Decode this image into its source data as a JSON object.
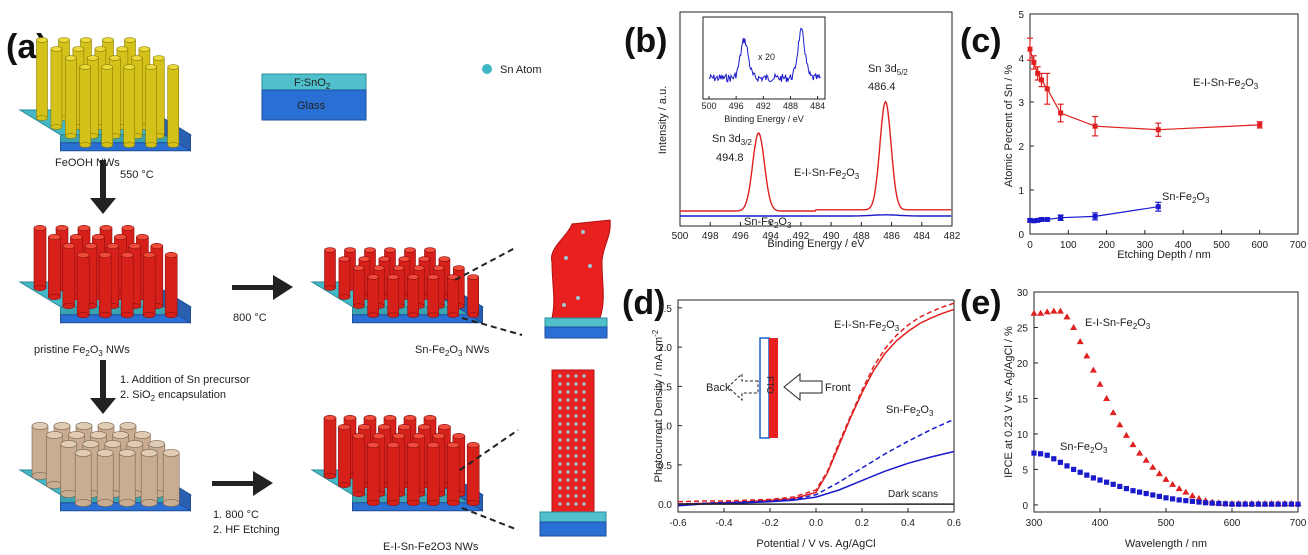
{
  "colors": {
    "red": "#e02020",
    "blue": "#1a1acc",
    "substrate": "#3fb6c4",
    "glass": "#2a6fd4",
    "feooh": "#d4c21a",
    "sio2": "#c9ad92",
    "black": "#222222"
  },
  "panel_a": {
    "label": "(a)",
    "feooh_label": "FeOOH NWs",
    "step1_temp": "550 °C",
    "pristine_label_pre": "pristine Fe",
    "pristine_label_sub1": "2",
    "pristine_label_mid": "O",
    "pristine_label_sub2": "3",
    "pristine_label_post": " NWs",
    "step_800": "800 °C",
    "sn_fe2o3_pre": "Sn-Fe",
    "sn_fe2o3_sub1": "2",
    "sn_fe2o3_mid": "O",
    "sn_fe2o3_sub2": "3",
    "sn_fe2o3_post": " NWs",
    "step2_line1": "1. Addition of Sn precursor",
    "step2_line2_pre": "2. SiO",
    "step2_line2_sub": "2",
    "step2_line2_post": " encapsulation",
    "step3_line1": "1. 800 °C",
    "step3_line2": "2. HF Etching",
    "ei_label": "E-I-Sn-Fe2O3 NWs",
    "legend_fto_pre": "F:SnO",
    "legend_fto_sub": "2",
    "legend_glass": "Glass",
    "legend_sn_atom": "Sn Atom"
  },
  "panel_b": {
    "label": "(b)",
    "xlabel": "Binding Energy / eV",
    "ylabel": "Intensity / a.u.",
    "xticks": [
      "500",
      "498",
      "496",
      "494",
      "492",
      "490",
      "488",
      "486",
      "484",
      "482"
    ],
    "peak1_name": "Sn 3d",
    "peak1_sub": "3/2",
    "peak1_value": "494.8",
    "peak2_name": "Sn 3d",
    "peak2_sub": "5/2",
    "peak2_value": "486.4",
    "series_red": "E-I-Sn-Fe2O3",
    "series_blue": "Sn-Fe2O3",
    "inset_xlabel": "Binding Energy / eV",
    "inset_xticks": [
      "500",
      "496",
      "492",
      "488",
      "484"
    ],
    "inset_note": "x 20"
  },
  "panel_c": {
    "label": "(c)",
    "xlabel": "Etching Depth / nm",
    "ylabel": "Atomic Percent of Sn / %",
    "xticks": [
      "0",
      "100",
      "200",
      "300",
      "400",
      "500",
      "600",
      "700"
    ],
    "yticks": [
      "0",
      "1",
      "2",
      "3",
      "4",
      "5"
    ],
    "series_red": "E-I-Sn-Fe2O3",
    "series_blue": "Sn-Fe2O3"
  },
  "panel_d": {
    "label": "(d)",
    "xlabel": "Potential / V vs. Ag/AgCl",
    "ylabel": "Photocurrent Density / mA cm-2",
    "xticks": [
      "-0.6",
      "-0.4",
      "-0.2",
      "0.0",
      "0.2",
      "0.4",
      "0.6"
    ],
    "yticks": [
      "0.0",
      "0.5",
      "1.0",
      "1.5",
      "2.0",
      "2.5"
    ],
    "series_red": "E-I-Sn-Fe2O3",
    "series_blue": "Sn-Fe2O3",
    "dark": "Dark scans",
    "inset_back": "Back",
    "inset_front": "Front",
    "inset_fto": "FTO"
  },
  "panel_e": {
    "label": "(e)",
    "xlabel": "Wavelength / nm",
    "ylabel": "IPCE at 0.23 V vs. Ag/AgCl / %",
    "xticks": [
      "300",
      "400",
      "500",
      "600",
      "700"
    ],
    "yticks": [
      "0",
      "5",
      "10",
      "15",
      "20",
      "25",
      "30"
    ],
    "series_red": "E-I-Sn-Fe2O3",
    "series_blue": "Sn-Fe2O3"
  },
  "chart_data": [
    {
      "type": "line",
      "panel": "b",
      "xlabel": "Binding Energy / eV",
      "ylabel": "Intensity / a.u.",
      "xlim": [
        500,
        482
      ],
      "series": [
        {
          "name": "E-I-Sn-Fe2O3",
          "peaks": [
            {
              "x": 494.8,
              "label": "Sn 3d3/2"
            },
            {
              "x": 486.4,
              "label": "Sn 3d5/2"
            }
          ]
        },
        {
          "name": "Sn-Fe2O3"
        }
      ]
    },
    {
      "type": "scatter",
      "panel": "c",
      "xlabel": "Etching Depth / nm",
      "ylabel": "Atomic Percent of Sn / %",
      "xlim": [
        0,
        700
      ],
      "ylim": [
        0,
        5
      ],
      "series": [
        {
          "name": "E-I-Sn-Fe2O3",
          "x": [
            0,
            10,
            20,
            30,
            45,
            80,
            170,
            335,
            600
          ],
          "y": [
            4.2,
            3.9,
            3.65,
            3.5,
            3.3,
            2.75,
            2.45,
            2.37,
            2.48
          ],
          "err": [
            0.25,
            0.15,
            0.15,
            0.15,
            0.35,
            0.2,
            0.22,
            0.15,
            0.07
          ]
        },
        {
          "name": "Sn-Fe2O3",
          "x": [
            0,
            10,
            20,
            30,
            45,
            80,
            170,
            335
          ],
          "y": [
            0.31,
            0.3,
            0.31,
            0.33,
            0.33,
            0.37,
            0.4,
            0.62
          ],
          "err": [
            0.03,
            0.03,
            0.03,
            0.03,
            0.03,
            0.06,
            0.08,
            0.1
          ]
        }
      ]
    },
    {
      "type": "line",
      "panel": "d",
      "xlabel": "Potential / V vs. Ag/AgCl",
      "ylabel": "Photocurrent Density / mA cm-2",
      "xlim": [
        -0.6,
        0.6
      ],
      "ylim": [
        -0.1,
        2.6
      ],
      "series": [
        {
          "name": "E-I-Sn-Fe2O3 front",
          "style": "solid",
          "color": "#e02020",
          "x": [
            -0.6,
            -0.5,
            -0.4,
            -0.3,
            -0.2,
            -0.1,
            0.0,
            0.05,
            0.1,
            0.15,
            0.2,
            0.25,
            0.3,
            0.35,
            0.4,
            0.45,
            0.5,
            0.55,
            0.6
          ],
          "y": [
            0.0,
            0.01,
            0.02,
            0.03,
            0.05,
            0.07,
            0.15,
            0.4,
            0.75,
            1.1,
            1.42,
            1.7,
            1.92,
            2.08,
            2.2,
            2.3,
            2.37,
            2.43,
            2.48
          ]
        },
        {
          "name": "E-I-Sn-Fe2O3 back",
          "style": "dashed",
          "color": "#e02020",
          "x": [
            -0.6,
            -0.5,
            -0.4,
            -0.3,
            -0.2,
            -0.1,
            0.0,
            0.05,
            0.1,
            0.15,
            0.2,
            0.25,
            0.3,
            0.35,
            0.4,
            0.45,
            0.5,
            0.55,
            0.6
          ],
          "y": [
            0.03,
            0.04,
            0.04,
            0.05,
            0.06,
            0.09,
            0.18,
            0.42,
            0.78,
            1.12,
            1.45,
            1.75,
            1.98,
            2.15,
            2.28,
            2.38,
            2.45,
            2.51,
            2.56
          ]
        },
        {
          "name": "Sn-Fe2O3 front",
          "style": "solid",
          "color": "#1a1acc",
          "x": [
            -0.6,
            -0.5,
            -0.4,
            -0.3,
            -0.2,
            -0.1,
            0.0,
            0.1,
            0.2,
            0.3,
            0.4,
            0.5,
            0.6
          ],
          "y": [
            -0.02,
            0.0,
            0.01,
            0.02,
            0.03,
            0.05,
            0.09,
            0.18,
            0.3,
            0.42,
            0.52,
            0.6,
            0.67
          ]
        },
        {
          "name": "Sn-Fe2O3 back",
          "style": "dashed",
          "color": "#1a1acc",
          "x": [
            -0.6,
            -0.5,
            -0.4,
            -0.3,
            -0.2,
            -0.1,
            0.0,
            0.1,
            0.2,
            0.3,
            0.4,
            0.5,
            0.6
          ],
          "y": [
            0.0,
            0.01,
            0.02,
            0.03,
            0.04,
            0.06,
            0.12,
            0.28,
            0.46,
            0.64,
            0.8,
            0.95,
            1.08
          ]
        },
        {
          "name": "Dark scans",
          "style": "solid",
          "color": "#222222",
          "x": [
            -0.6,
            0.6
          ],
          "y": [
            0.0,
            0.0
          ]
        }
      ]
    },
    {
      "type": "scatter",
      "panel": "e",
      "xlabel": "Wavelength / nm",
      "ylabel": "IPCE at 0.23 V vs. Ag/AgCl / %",
      "xlim": [
        300,
        700
      ],
      "ylim": [
        -1,
        30
      ],
      "series": [
        {
          "name": "E-I-Sn-Fe2O3",
          "marker": "triangle",
          "x": [
            300,
            310,
            320,
            330,
            340,
            350,
            360,
            370,
            380,
            390,
            400,
            410,
            420,
            430,
            440,
            450,
            460,
            470,
            480,
            490,
            500,
            510,
            520,
            530,
            540,
            550,
            560,
            570,
            580,
            590,
            600,
            610,
            620,
            630,
            640,
            650,
            660,
            670,
            680,
            690,
            700
          ],
          "y": [
            27.0,
            27.0,
            27.2,
            27.3,
            27.3,
            26.5,
            25.0,
            23.0,
            21.0,
            19.0,
            17.0,
            15.0,
            13.0,
            11.3,
            9.8,
            8.5,
            7.3,
            6.3,
            5.3,
            4.4,
            3.6,
            2.9,
            2.3,
            1.8,
            1.3,
            0.9,
            0.6,
            0.4,
            0.3,
            0.2,
            0.2,
            0.2,
            0.2,
            0.2,
            0.2,
            0.2,
            0.2,
            0.2,
            0.2,
            0.2,
            0.2
          ]
        },
        {
          "name": "Sn-Fe2O3",
          "marker": "square",
          "x": [
            300,
            310,
            320,
            330,
            340,
            350,
            360,
            370,
            380,
            390,
            400,
            410,
            420,
            430,
            440,
            450,
            460,
            470,
            480,
            490,
            500,
            510,
            520,
            530,
            540,
            550,
            560,
            570,
            580,
            590,
            600,
            610,
            620,
            630,
            640,
            650,
            660,
            670,
            680,
            690,
            700
          ],
          "y": [
            7.3,
            7.2,
            7.0,
            6.5,
            6.0,
            5.5,
            5.0,
            4.6,
            4.2,
            3.8,
            3.5,
            3.2,
            2.9,
            2.6,
            2.3,
            2.0,
            1.8,
            1.6,
            1.4,
            1.2,
            1.0,
            0.85,
            0.7,
            0.6,
            0.5,
            0.4,
            0.3,
            0.25,
            0.2,
            0.15,
            0.1,
            0.1,
            0.1,
            0.1,
            0.1,
            0.1,
            0.1,
            0.1,
            0.1,
            0.1,
            0.1
          ]
        }
      ]
    }
  ]
}
